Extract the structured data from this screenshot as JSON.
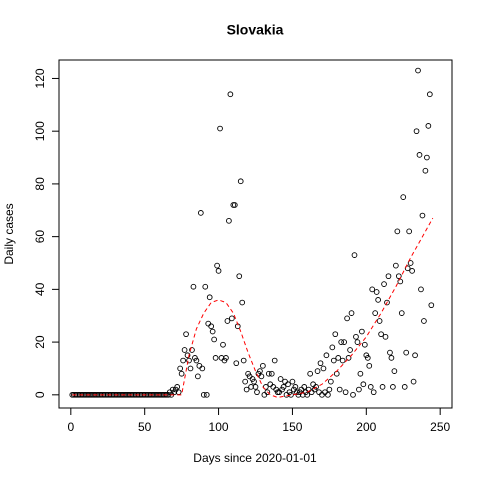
{
  "chart_data": {
    "type": "scatter",
    "title": "Slovakia",
    "x_label": "Days since 2020-01-01",
    "y_label": "Daily cases",
    "xlim": [
      -8,
      258
    ],
    "ylim": [
      -5,
      127
    ],
    "xticks": [
      0,
      50,
      100,
      150,
      200,
      250
    ],
    "yticks": [
      0,
      20,
      40,
      60,
      80,
      100,
      120
    ],
    "series": [
      {
        "color": "#000000",
        "x": [
          1,
          2,
          3,
          4,
          5,
          6,
          7,
          8,
          9,
          10,
          11,
          12,
          13,
          14,
          15,
          16,
          17,
          18,
          19,
          20,
          21,
          22,
          23,
          24,
          25,
          26,
          27,
          28,
          29,
          30,
          31,
          32,
          33,
          34,
          35,
          36,
          37,
          38,
          39,
          40,
          41,
          42,
          43,
          44,
          45,
          46,
          47,
          48,
          49,
          50,
          51,
          52,
          53,
          54,
          55,
          56,
          57,
          58,
          59,
          60,
          61,
          62,
          63,
          64,
          65,
          66,
          67,
          68,
          69,
          70,
          71,
          72,
          73,
          74,
          75,
          76,
          77,
          78,
          79,
          80,
          81,
          82,
          83,
          84,
          85,
          86,
          87,
          88,
          89,
          90,
          91,
          92,
          93,
          94,
          95,
          96,
          97,
          98,
          99,
          100,
          101,
          102,
          103,
          104,
          105,
          106,
          107,
          108,
          109,
          110,
          111,
          112,
          113,
          114,
          115,
          116,
          117,
          118,
          119,
          120,
          121,
          122,
          123,
          124,
          125,
          126,
          127,
          128,
          129,
          130,
          131,
          132,
          133,
          134,
          135,
          136,
          137,
          138,
          139,
          140,
          141,
          142,
          143,
          144,
          145,
          146,
          147,
          148,
          149,
          150,
          151,
          152,
          153,
          154,
          155,
          156,
          157,
          158,
          159,
          160,
          161,
          162,
          163,
          164,
          165,
          166,
          167,
          168,
          169,
          170,
          171,
          172,
          173,
          174,
          175,
          176,
          177,
          178,
          179,
          180,
          181,
          182,
          183,
          184,
          185,
          186,
          187,
          188,
          189,
          190,
          191,
          192,
          193,
          194,
          195,
          196,
          197,
          198,
          199,
          200,
          201,
          202,
          203,
          204,
          205,
          206,
          207,
          208,
          209,
          210,
          211,
          212,
          213,
          214,
          215,
          216,
          217,
          218,
          219,
          220,
          221,
          222,
          223,
          224,
          225,
          226,
          227,
          228,
          229,
          230,
          231,
          232,
          233,
          234,
          235,
          236,
          237,
          238,
          239,
          240,
          241,
          242,
          243,
          244
        ],
        "values": [
          0,
          0,
          0,
          0,
          0,
          0,
          0,
          0,
          0,
          0,
          0,
          0,
          0,
          0,
          0,
          0,
          0,
          0,
          0,
          0,
          0,
          0,
          0,
          0,
          0,
          0,
          0,
          0,
          0,
          0,
          0,
          0,
          0,
          0,
          0,
          0,
          0,
          0,
          0,
          0,
          0,
          0,
          0,
          0,
          0,
          0,
          0,
          0,
          0,
          0,
          0,
          0,
          0,
          0,
          0,
          0,
          0,
          0,
          0,
          0,
          0,
          0,
          0,
          0,
          0,
          0,
          1,
          0,
          2,
          1,
          2,
          3,
          1,
          10,
          8,
          13,
          17,
          23,
          15,
          13,
          10,
          17,
          41,
          14,
          13,
          7,
          11,
          69,
          10,
          0,
          41,
          0,
          27,
          37,
          26,
          24,
          21,
          14,
          49,
          47,
          101,
          14,
          19,
          13,
          14,
          28,
          66,
          114,
          29,
          72,
          72,
          12,
          26,
          45,
          81,
          35,
          13,
          5,
          2,
          8,
          7,
          3,
          6,
          5,
          3,
          1,
          8,
          9,
          7,
          11,
          0,
          3,
          1,
          8,
          4,
          8,
          3,
          13,
          2,
          1,
          1,
          6,
          2,
          3,
          5,
          0,
          4,
          1,
          0,
          5,
          2,
          3,
          1,
          0,
          1,
          2,
          0,
          3,
          1,
          0,
          2,
          8,
          1,
          4,
          2,
          3,
          9,
          1,
          12,
          0,
          10,
          1,
          15,
          0,
          2,
          5,
          18,
          13,
          23,
          8,
          14,
          2,
          20,
          13,
          20,
          1,
          29,
          14,
          17,
          31,
          0,
          53,
          22,
          20,
          2,
          8,
          24,
          4,
          19,
          15,
          14,
          11,
          3,
          40,
          1,
          31,
          39,
          36,
          28,
          23,
          3,
          42,
          22,
          35,
          45,
          16,
          14,
          3,
          9,
          49,
          62,
          45,
          43,
          31,
          75,
          3,
          16,
          48,
          62,
          50,
          47,
          5,
          15,
          100,
          123,
          91,
          40,
          68,
          28,
          85,
          90,
          102,
          114,
          34
        ]
      },
      {
        "color": "#ff0000",
        "x": [
          1,
          75,
          80,
          85,
          90,
          95,
          100,
          105,
          110,
          115,
          120,
          125,
          130,
          135,
          140,
          150,
          160,
          170,
          180,
          190,
          200,
          210,
          220,
          230,
          240,
          245
        ],
        "values": [
          0,
          0,
          15,
          25,
          31,
          35,
          36,
          35,
          31,
          24,
          16,
          9,
          3,
          0,
          -1,
          0,
          1,
          4,
          9,
          15,
          22,
          31,
          41,
          52,
          62,
          67
        ]
      }
    ]
  }
}
